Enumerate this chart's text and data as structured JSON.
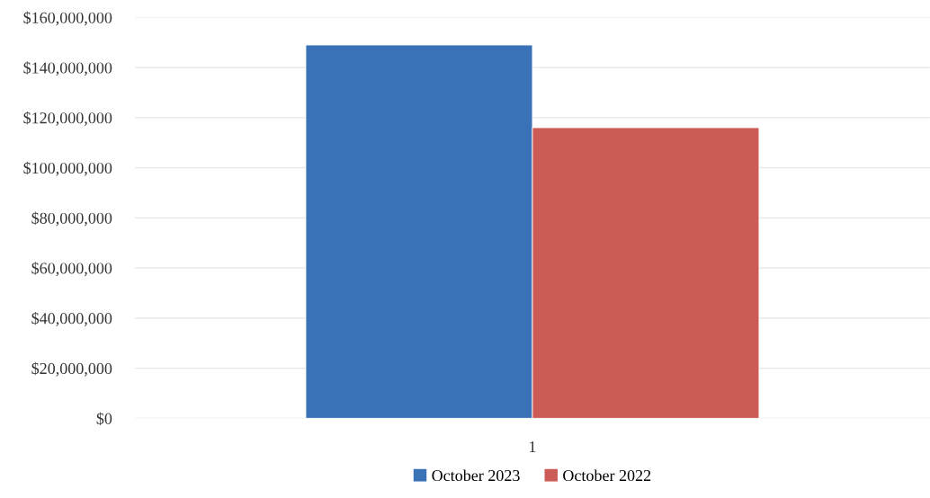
{
  "chart_data": {
    "type": "bar",
    "categories": [
      "1"
    ],
    "series": [
      {
        "name": "October 2023",
        "color": "#3a72b8",
        "values": [
          149000000
        ]
      },
      {
        "name": "October 2022",
        "color": "#cc5a55",
        "values": [
          116000000
        ]
      }
    ],
    "ylim": [
      0,
      160000000
    ],
    "yticks": [
      {
        "value": 0,
        "label": "$0"
      },
      {
        "value": 20000000,
        "label": "$20,000,000"
      },
      {
        "value": 40000000,
        "label": "$40,000,000"
      },
      {
        "value": 60000000,
        "label": "$60,000,000"
      },
      {
        "value": 80000000,
        "label": "$80,000,000"
      },
      {
        "value": 100000000,
        "label": "$100,000,000"
      },
      {
        "value": 120000000,
        "label": "$120,000,000"
      },
      {
        "value": 140000000,
        "label": "$140,000,000"
      },
      {
        "value": 160000000,
        "label": "$160,000,000"
      }
    ],
    "grid": "y",
    "legend": "bottom"
  }
}
